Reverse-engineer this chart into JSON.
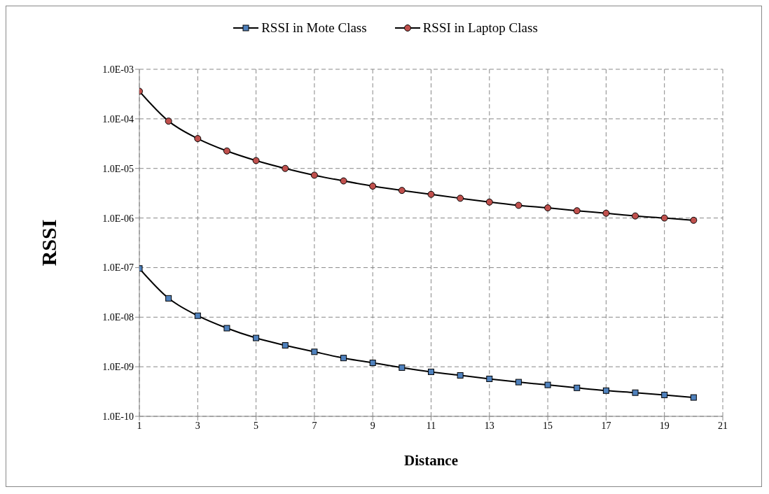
{
  "chart_data": {
    "type": "line",
    "xlabel": "Distance",
    "ylabel": "RSSI",
    "x": [
      1,
      2,
      3,
      4,
      5,
      6,
      7,
      8,
      9,
      10,
      11,
      12,
      13,
      14,
      15,
      16,
      17,
      18,
      19,
      20
    ],
    "series": [
      {
        "name": "RSSI in Mote Class",
        "color": "#4f81bd",
        "marker": "square",
        "values": [
          9.6e-08,
          2.4e-08,
          1.07e-08,
          6e-09,
          3.8e-09,
          2.7e-09,
          2e-09,
          1.5e-09,
          1.2e-09,
          9.6e-10,
          7.9e-10,
          6.7e-10,
          5.7e-10,
          4.9e-10,
          4.3e-10,
          3.75e-10,
          3.3e-10,
          3e-10,
          2.7e-10,
          2.4e-10
        ]
      },
      {
        "name": "RSSI in Laptop Class",
        "color": "#c0504d",
        "marker": "circle",
        "values": [
          0.00036,
          9e-05,
          4e-05,
          2.25e-05,
          1.44e-05,
          1e-05,
          7.3e-06,
          5.6e-06,
          4.4e-06,
          3.6e-06,
          3e-06,
          2.5e-06,
          2.1e-06,
          1.8e-06,
          1.6e-06,
          1.4e-06,
          1.25e-06,
          1.1e-06,
          1e-06,
          9e-07
        ]
      }
    ],
    "xlim": [
      1,
      21
    ],
    "xticks": [
      1,
      3,
      5,
      7,
      9,
      11,
      13,
      15,
      17,
      19,
      21
    ],
    "ylim": [
      1e-10,
      0.001
    ],
    "yticks": [
      {
        "value": 1e-10,
        "label": "1.0E-10"
      },
      {
        "value": 1e-09,
        "label": "1.0E-09"
      },
      {
        "value": 1e-08,
        "label": "1.0E-08"
      },
      {
        "value": 1e-07,
        "label": "1.0E-07"
      },
      {
        "value": 1e-06,
        "label": "1.0E-06"
      },
      {
        "value": 1e-05,
        "label": "1.0E-05"
      },
      {
        "value": 0.0001,
        "label": "1.0E-04"
      },
      {
        "value": 0.001,
        "label": "1.0E-03"
      }
    ],
    "log": "y",
    "grid": true,
    "legend": "top",
    "line_style": "solid"
  }
}
